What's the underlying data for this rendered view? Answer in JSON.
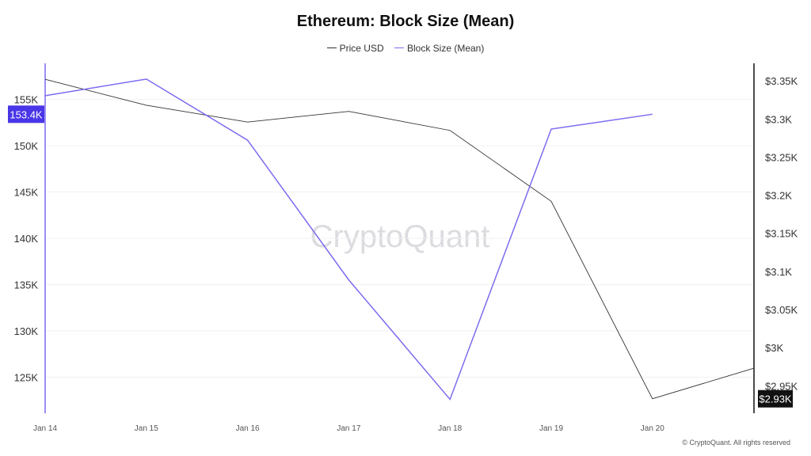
{
  "chart_data": {
    "type": "line",
    "title": "Ethereum: Block Size (Mean)",
    "categories": [
      "Jan 14",
      "Jan 15",
      "Jan 16",
      "Jan 17",
      "Jan 18",
      "Jan 19",
      "Jan 20",
      ""
    ],
    "series": [
      {
        "name": "Price USD",
        "axis": "right",
        "color": "#333333",
        "values": [
          3352,
          3318,
          3296,
          3310,
          3285,
          3192,
          2933,
          2973
        ]
      },
      {
        "name": "Block Size (Mean)",
        "axis": "left",
        "color": "#7b6cf0",
        "values": [
          155400,
          157200,
          150600,
          135500,
          122600,
          151800,
          153400,
          null
        ]
      }
    ],
    "left_axis": {
      "ticks": [
        125000,
        130000,
        135000,
        140000,
        145000,
        150000,
        155000
      ],
      "tick_labels": [
        "125K",
        "130K",
        "135K",
        "140K",
        "145K",
        "150K",
        "155K"
      ],
      "ylim": [
        121100,
        158900
      ]
    },
    "right_axis": {
      "ticks": [
        2950,
        3000,
        3050,
        3100,
        3150,
        3200,
        3250,
        3300,
        3350
      ],
      "tick_labels": [
        "$2.95K",
        "$3K",
        "$3.05K",
        "$3.1K",
        "$3.15K",
        "$3.2K",
        "$3.25K",
        "$3.3K",
        "$3.35K"
      ],
      "ylim": [
        2914,
        3373
      ]
    },
    "current_labels": {
      "left": "153.4K",
      "right": "$2.93K"
    },
    "grid": true,
    "legend_position": "top"
  },
  "watermark": "CryptoQuant",
  "copyright": "© CryptoQuant. All rights reserved"
}
